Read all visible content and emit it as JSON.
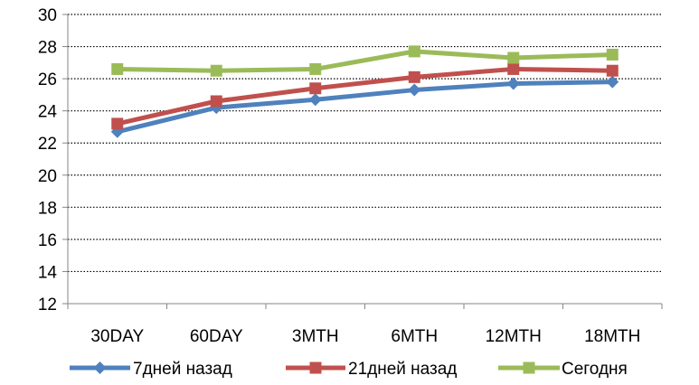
{
  "chart_data": {
    "type": "line",
    "title": "",
    "xlabel": "",
    "ylabel": "",
    "categories": [
      "30DAY",
      "60DAY",
      "3MTH",
      "6MTH",
      "12MTH",
      "18MTH"
    ],
    "ylim": [
      12,
      30
    ],
    "yticks": [
      12,
      14,
      16,
      18,
      20,
      22,
      24,
      26,
      28,
      30
    ],
    "grid": "horizontal-dotted",
    "legend_position": "bottom",
    "series": [
      {
        "name": "7дней назад",
        "values": [
          22.7,
          24.2,
          24.7,
          25.3,
          25.7,
          25.8
        ],
        "color": "#4F81BD",
        "marker": "diamond"
      },
      {
        "name": "21дней назад",
        "values": [
          23.2,
          24.6,
          25.4,
          26.1,
          26.6,
          26.5
        ],
        "color": "#C0504D",
        "marker": "square"
      },
      {
        "name": "Сегодня",
        "values": [
          26.6,
          26.5,
          26.6,
          27.7,
          27.3,
          27.5
        ],
        "color": "#9BBB59",
        "marker": "square"
      }
    ]
  }
}
